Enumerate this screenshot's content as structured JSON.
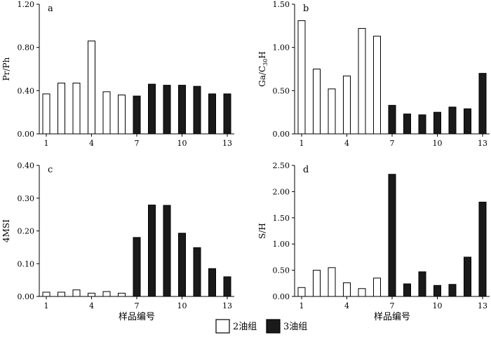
{
  "figure_legend": {
    "items": [
      {
        "label": "2油组",
        "fill": "#ffffff"
      },
      {
        "label": "3油组",
        "fill": "#1a1a1a"
      }
    ]
  },
  "chart_data": [
    {
      "panel": "a",
      "type": "bar",
      "ylabel": "Pr/Ph",
      "xlabel": "",
      "ylim": [
        0,
        1.2
      ],
      "yticks": [
        0,
        0.4,
        0.8,
        1.2
      ],
      "ytick_labels": [
        "0.00",
        "0.40",
        "0.80",
        "1.20"
      ],
      "categories": [
        "1",
        "2",
        "3",
        "4",
        "5",
        "6",
        "7",
        "8",
        "9",
        "10",
        "11",
        "12",
        "13"
      ],
      "xtick_labels": [
        "1",
        "4",
        "7",
        "10",
        "13"
      ],
      "values": [
        0.37,
        0.47,
        0.47,
        0.86,
        0.39,
        0.36,
        0.35,
        0.46,
        0.45,
        0.45,
        0.44,
        0.37,
        0.37
      ],
      "groups": [
        "2油组",
        "2油组",
        "2油组",
        "2油组",
        "2油组",
        "2油组",
        "3油组",
        "3油组",
        "3油组",
        "3油组",
        "3油组",
        "3油组",
        "3油组"
      ]
    },
    {
      "panel": "b",
      "type": "bar",
      "ylabel": "Ga/C30H",
      "ylabel_main": "Ga/C",
      "ylabel_sub": "30",
      "ylabel_tail": "H",
      "xlabel": "",
      "ylim": [
        0,
        1.5
      ],
      "yticks": [
        0,
        0.5,
        1.0,
        1.5
      ],
      "ytick_labels": [
        "0.00",
        "0.50",
        "1.00",
        "1.50"
      ],
      "categories": [
        "1",
        "2",
        "3",
        "4",
        "5",
        "6",
        "7",
        "8",
        "9",
        "10",
        "11",
        "12",
        "13"
      ],
      "xtick_labels": [
        "1",
        "4",
        "7",
        "10",
        "13"
      ],
      "values": [
        1.31,
        0.75,
        0.52,
        0.67,
        1.22,
        1.13,
        0.33,
        0.23,
        0.22,
        0.25,
        0.31,
        0.29,
        0.7
      ],
      "groups": [
        "2油组",
        "2油组",
        "2油组",
        "2油组",
        "2油组",
        "2油组",
        "3油组",
        "3油组",
        "3油组",
        "3油组",
        "3油组",
        "3油组",
        "3油组"
      ]
    },
    {
      "panel": "c",
      "type": "bar",
      "ylabel": "4MSI",
      "xlabel": "样品编号",
      "ylim": [
        0,
        0.4
      ],
      "yticks": [
        0,
        0.1,
        0.2,
        0.3,
        0.4
      ],
      "ytick_labels": [
        "0.00",
        "0.10",
        "0.20",
        "0.30",
        "0.40"
      ],
      "categories": [
        "1",
        "2",
        "3",
        "4",
        "5",
        "6",
        "7",
        "8",
        "9",
        "10",
        "11",
        "12",
        "13"
      ],
      "xtick_labels": [
        "1",
        "4",
        "7",
        "10",
        "13"
      ],
      "values": [
        0.013,
        0.013,
        0.02,
        0.01,
        0.015,
        0.01,
        0.18,
        0.279,
        0.278,
        0.193,
        0.149,
        0.085,
        0.06
      ],
      "groups": [
        "2油组",
        "2油组",
        "2油组",
        "2油组",
        "2油组",
        "2油组",
        "3油组",
        "3油组",
        "3油组",
        "3油组",
        "3油组",
        "3油组",
        "3油组"
      ]
    },
    {
      "panel": "d",
      "type": "bar",
      "ylabel": "S/H",
      "xlabel": "样品编号",
      "ylim": [
        0,
        2.5
      ],
      "yticks": [
        0,
        0.5,
        1.0,
        1.5,
        2.0,
        2.5
      ],
      "ytick_labels": [
        "0.00",
        "0.50",
        "1.00",
        "1.50",
        "2.00",
        "2.50"
      ],
      "categories": [
        "1",
        "2",
        "3",
        "4",
        "5",
        "6",
        "7",
        "8",
        "9",
        "10",
        "11",
        "12",
        "13"
      ],
      "xtick_labels": [
        "1",
        "4",
        "7",
        "10",
        "13"
      ],
      "values": [
        0.17,
        0.5,
        0.55,
        0.26,
        0.15,
        0.35,
        2.33,
        0.24,
        0.47,
        0.21,
        0.23,
        0.75,
        1.8
      ],
      "groups": [
        "2油组",
        "2油组",
        "2油组",
        "2油组",
        "2油组",
        "2油组",
        "3油组",
        "3油组",
        "3油组",
        "3油组",
        "3油组",
        "3油组",
        "3油组"
      ]
    }
  ]
}
